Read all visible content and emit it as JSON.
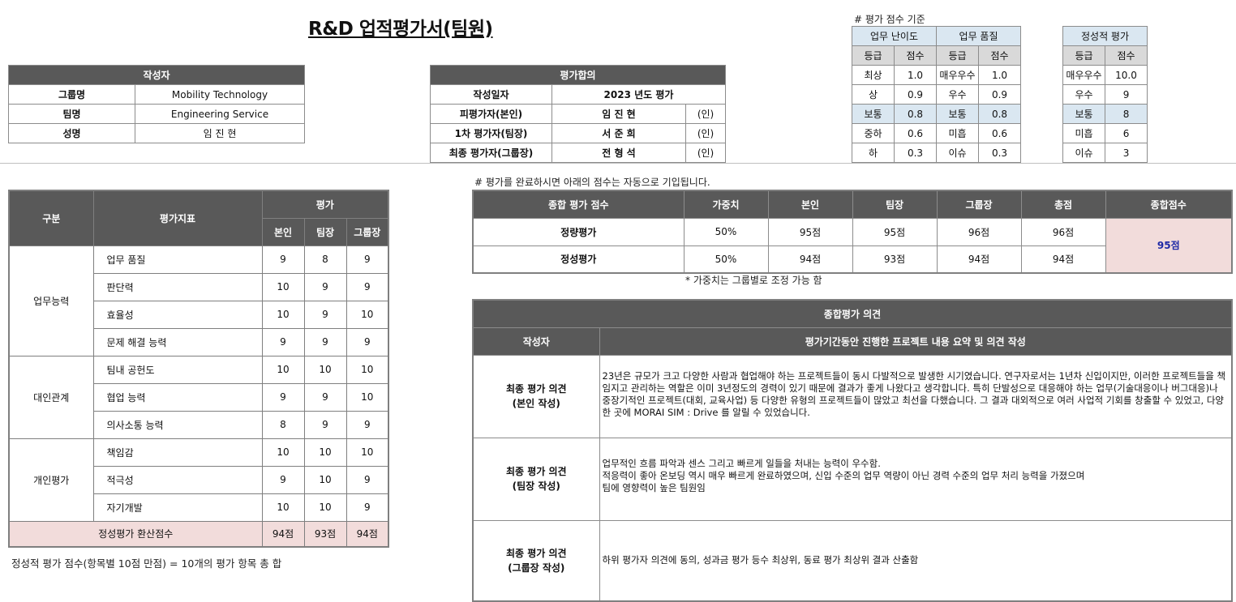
{
  "title": "R&D 업적평가서(팀원)",
  "author_box": {
    "header": "작성자",
    "rows": [
      {
        "label": "그룹명",
        "value": "Mobility Technology"
      },
      {
        "label": "팀명",
        "value": "Engineering Service"
      },
      {
        "label": "성명",
        "value": "임 진 현"
      }
    ]
  },
  "agreement_box": {
    "header": "평가합의",
    "rows": [
      {
        "label": "작성일자",
        "value": "2023 년도 평가",
        "seal": ""
      },
      {
        "label": "피평가자(본인)",
        "value": "임 진 현",
        "seal": "(인)"
      },
      {
        "label": "1차 평가자(팀장)",
        "value": "서 준 희",
        "seal": "(인)"
      },
      {
        "label": "최종 평가자(그룹장)",
        "value": "전 형 석",
        "seal": "(인)"
      }
    ]
  },
  "criteria": {
    "note": "# 평가 점수 기준",
    "difficulty": "업무 난이도",
    "quality": "업무 품질",
    "grade": "등급",
    "score": "점수",
    "rows": [
      {
        "g1": "최상",
        "s1": "1.0",
        "g2": "매우우수",
        "s2": "1.0"
      },
      {
        "g1": "상",
        "s1": "0.9",
        "g2": "우수",
        "s2": "0.9"
      },
      {
        "g1": "보통",
        "s1": "0.8",
        "g2": "보통",
        "s2": "0.8"
      },
      {
        "g1": "중하",
        "s1": "0.6",
        "g2": "미흡",
        "s2": "0.6"
      },
      {
        "g1": "하",
        "s1": "0.3",
        "g2": "이슈",
        "s2": "0.3"
      }
    ],
    "qualitative": "정성적 평가",
    "qrows": [
      {
        "g": "매우우수",
        "s": "10.0"
      },
      {
        "g": "우수",
        "s": "9"
      },
      {
        "g": "보통",
        "s": "8"
      },
      {
        "g": "미흡",
        "s": "6"
      },
      {
        "g": "이슈",
        "s": "3"
      }
    ]
  },
  "eval_table": {
    "col_category": "구분",
    "col_indicator": "평가지표",
    "col_eval": "평가",
    "col_self": "본인",
    "col_leader": "팀장",
    "col_group": "그룹장",
    "groups": [
      {
        "name": "업무능력",
        "items": [
          {
            "name": "업무 품질",
            "self": "9",
            "leader": "8",
            "group": "9"
          },
          {
            "name": "판단력",
            "self": "10",
            "leader": "9",
            "group": "9"
          },
          {
            "name": "효율성",
            "self": "10",
            "leader": "9",
            "group": "10"
          },
          {
            "name": "문제 해결 능력",
            "self": "9",
            "leader": "9",
            "group": "9"
          }
        ]
      },
      {
        "name": "대인관계",
        "items": [
          {
            "name": "팀내 공헌도",
            "self": "10",
            "leader": "10",
            "group": "10"
          },
          {
            "name": "협업 능력",
            "self": "9",
            "leader": "9",
            "group": "10"
          },
          {
            "name": "의사소통 능력",
            "self": "8",
            "leader": "9",
            "group": "9"
          }
        ]
      },
      {
        "name": "개인평가",
        "items": [
          {
            "name": "책임감",
            "self": "10",
            "leader": "10",
            "group": "10"
          },
          {
            "name": "적극성",
            "self": "9",
            "leader": "10",
            "group": "9"
          },
          {
            "name": "자기개발",
            "self": "10",
            "leader": "10",
            "group": "9"
          }
        ]
      }
    ],
    "total_label": "정성평가 환산점수",
    "total_self": "94점",
    "total_leader": "93점",
    "total_group": "94점",
    "footnote": "정성적 평가 점수(항목별 10점 만점) = 10개의 평가 항목 총 합"
  },
  "summary": {
    "note": "# 평가를 완료하시면 아래의 점수는 자동으로 기입됩니다.",
    "headers": [
      "종합 평가 점수",
      "가중치",
      "본인",
      "팀장",
      "그룹장",
      "총점",
      "종합점수"
    ],
    "rows": [
      {
        "name": "정량평가",
        "weight": "50%",
        "self": "95점",
        "leader": "95점",
        "group": "96점",
        "total": "96점"
      },
      {
        "name": "정성평가",
        "weight": "50%",
        "self": "94점",
        "leader": "93점",
        "group": "94점",
        "total": "94점"
      }
    ],
    "final_score": "95점",
    "footnote": "* 가중치는 그룹별로 조정 가능 함"
  },
  "opinions": {
    "header": "종합평가 의견",
    "col_author": "작성자",
    "col_content": "평가기간동안 진행한 프로젝트 내용 요약 및 의견 작성",
    "rows": [
      {
        "label1": "최종 평가 의견",
        "label2": "(본인 작성)",
        "text": "23년은 규모가 크고 다양한 사람과 협업해야 하는 프로젝트들이 동시 다발적으로 발생한 시기였습니다. 연구자로서는 1년차 신입이지만, 이러한 프로젝트들을 책임지고 관리하는 역할은 이미 3년정도의 경력이 있기 때문에 결과가 좋게 나왔다고 생각합니다. 특히 단발성으로 대응해야 하는 업무(기술대응이나 버그대응)나 중장기적인 프로젝트(대회, 교육사업) 등 다양한 유형의 프로젝트들이 많았고 최선을 다했습니다. 그 결과 대외적으로 여러 사업적 기회를 창출할 수 있었고, 다양한 곳에 MORAI SIM : Drive 를 알릴 수 있었습니다."
      },
      {
        "label1": "최종 평가 의견",
        "label2": "(팀장 작성)",
        "line1": "업무적인 흐름 파악과 센스 그리고 빠르게 일들을 처내는 능력이 우수함.",
        "line2": "적응력이 좋아 온보딩 역시 매우 빠르게 완료하였으며, 신입 수준의 업무 역량이 아닌 경력 수준의 업무 처리 능력을 가졌으며",
        "line3": "팀에 영향력이 높은 팀원임"
      },
      {
        "label1": "최종 평가 의견",
        "label2": "(그룹장 작성)",
        "text": "하위 평가자 의견에 동의, 성과금 평가 등수 최상위, 동료 평가 최상위 결과 산출함"
      }
    ]
  }
}
